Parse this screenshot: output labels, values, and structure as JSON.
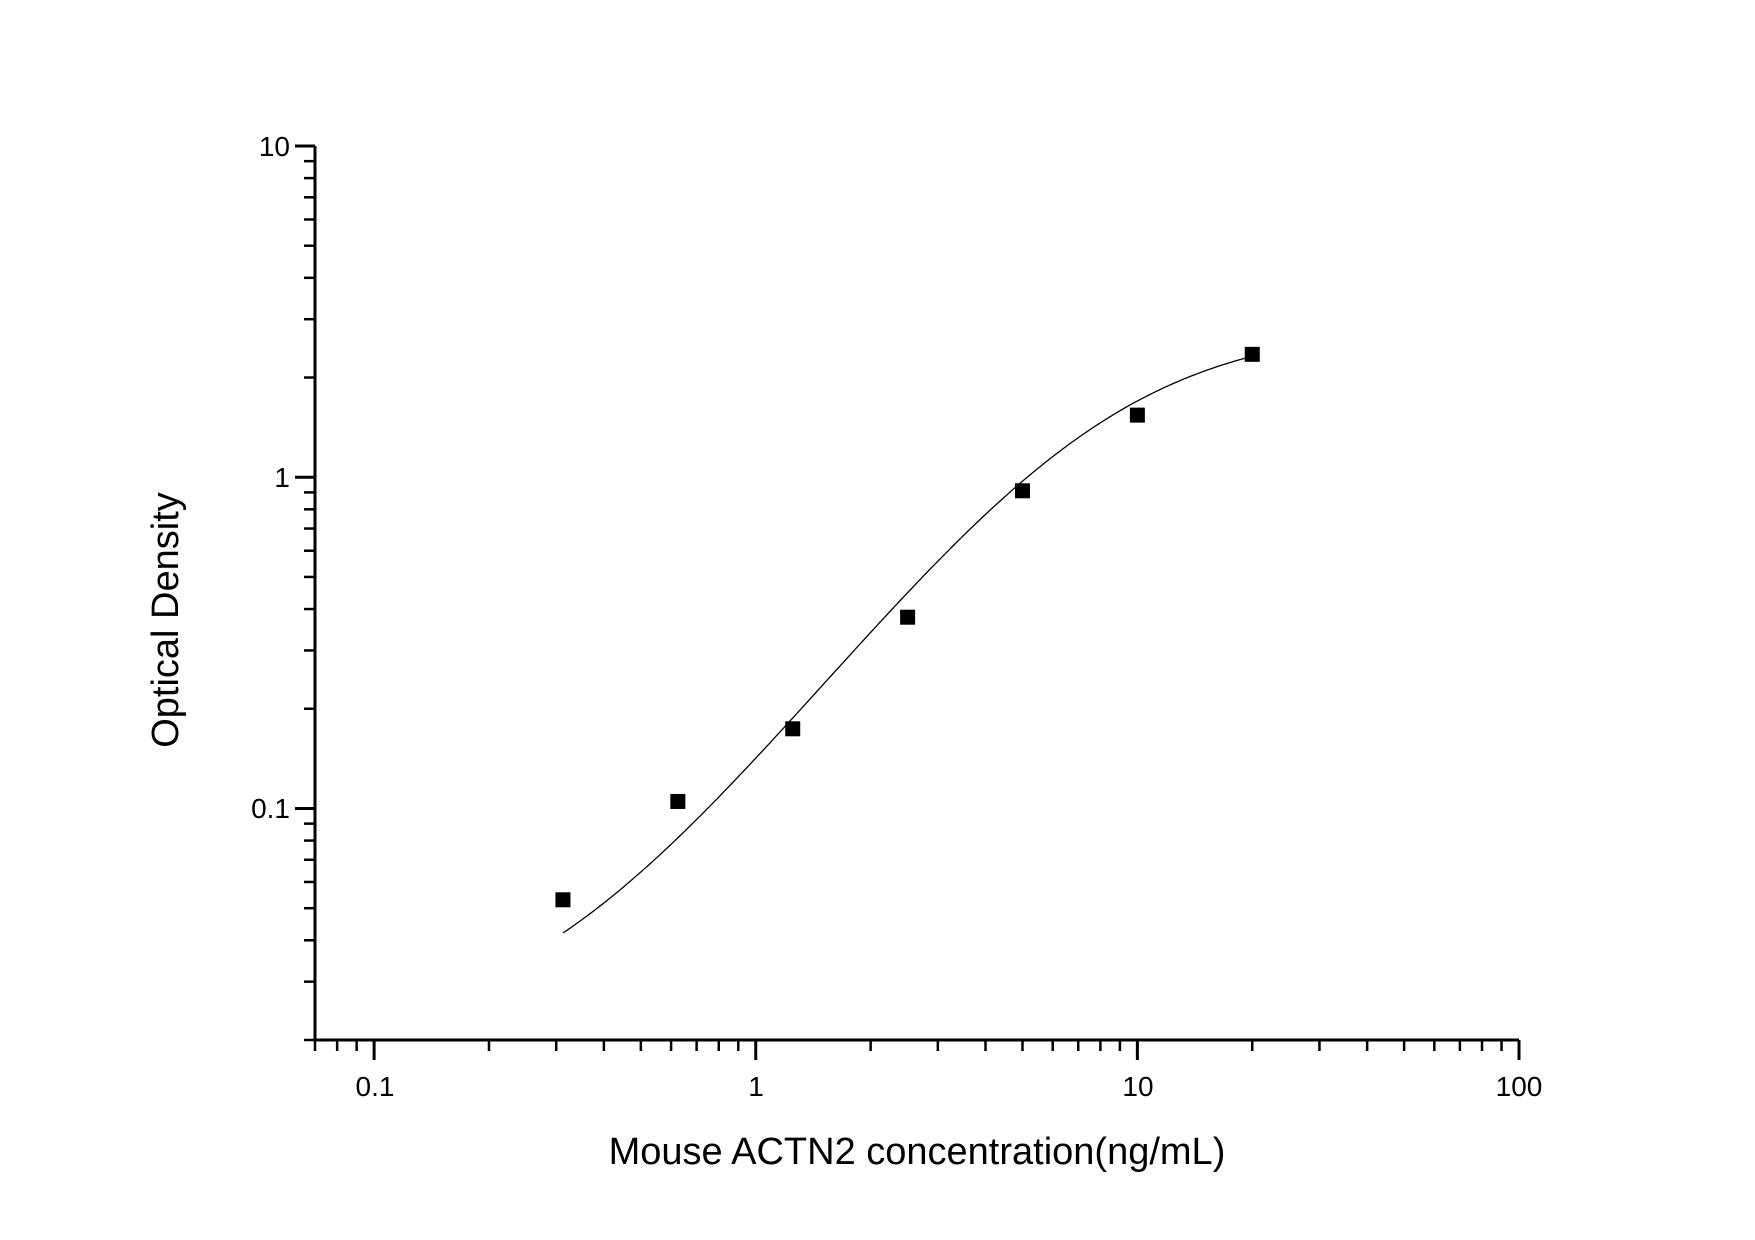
{
  "chart_data": {
    "type": "scatter",
    "title": "",
    "xlabel": "Mouse ACTN2 concentration(ng/mL)",
    "ylabel": "Optical Density",
    "x_scale": "log",
    "y_scale": "log",
    "xlim": [
      0.07,
      100
    ],
    "ylim": [
      0.02,
      10
    ],
    "x_ticks": [
      "0.1",
      "1",
      "10",
      "100"
    ],
    "y_ticks": [
      "0.1",
      "1",
      "10"
    ],
    "grid": false,
    "legend": "none",
    "marker": "square",
    "color": "#000000",
    "fit_curve": true,
    "series": [
      {
        "x": [
          0.3125,
          0.625,
          1.25,
          2.5,
          5,
          10,
          20
        ],
        "y": [
          0.053,
          0.105,
          0.174,
          0.378,
          0.91,
          1.54,
          2.35
        ]
      }
    ]
  }
}
